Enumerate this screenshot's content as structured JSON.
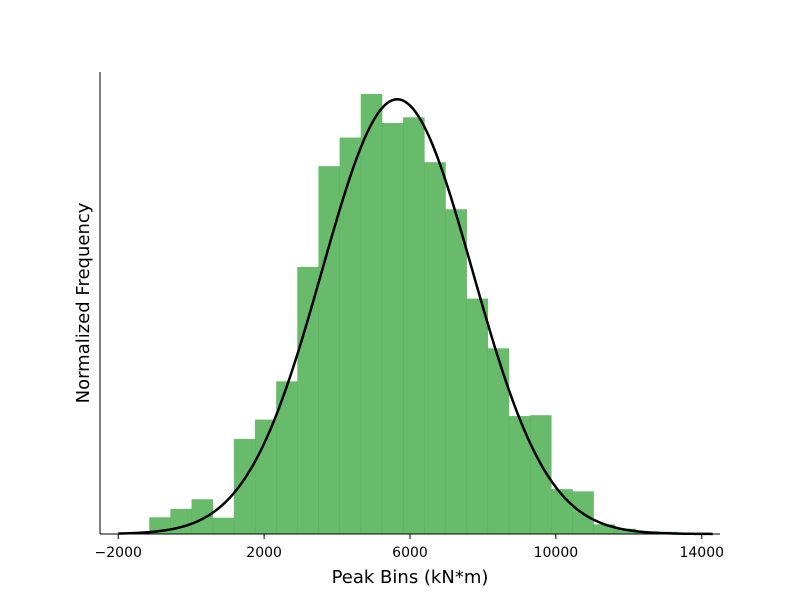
{
  "chart_data": {
    "type": "bar",
    "title": "",
    "xlabel": "Peak Bins (kN*m)",
    "ylabel": "Normalized Frequency",
    "xlim": [
      -2500,
      14500
    ],
    "ylim": [
      0,
      1.0
    ],
    "xticks": [
      -2000,
      2000,
      6000,
      10000,
      14000
    ],
    "xtick_labels": [
      "−2000",
      "2000",
      "6000",
      "10000",
      "14000"
    ],
    "yticks": [],
    "grid": false,
    "legend": "none",
    "bin_edges": [
      -1150,
      -570,
      10,
      590,
      1170,
      1750,
      2330,
      2910,
      3490,
      4070,
      4650,
      5230,
      5810,
      6390,
      6970,
      7550,
      8130,
      8710,
      9290,
      9870,
      10450,
      11030,
      11610,
      12190,
      12770,
      13350,
      13930
    ],
    "values": [
      0.038,
      0.057,
      0.079,
      0.037,
      0.216,
      0.26,
      0.347,
      0.607,
      0.836,
      0.901,
      1.0,
      0.934,
      0.947,
      0.845,
      0.738,
      0.535,
      0.422,
      0.268,
      0.27,
      0.102,
      0.097,
      0.022,
      0.012,
      0.006,
      0.005,
      0.002
    ],
    "fit_curve": {
      "type": "normal",
      "mean": 5650,
      "std": 2060,
      "peak": 0.988,
      "x_range": [
        -2000,
        14300
      ]
    },
    "colors": {
      "bars": "#4caf50",
      "bar_opacity": 0.85,
      "curve": "#000000"
    }
  }
}
